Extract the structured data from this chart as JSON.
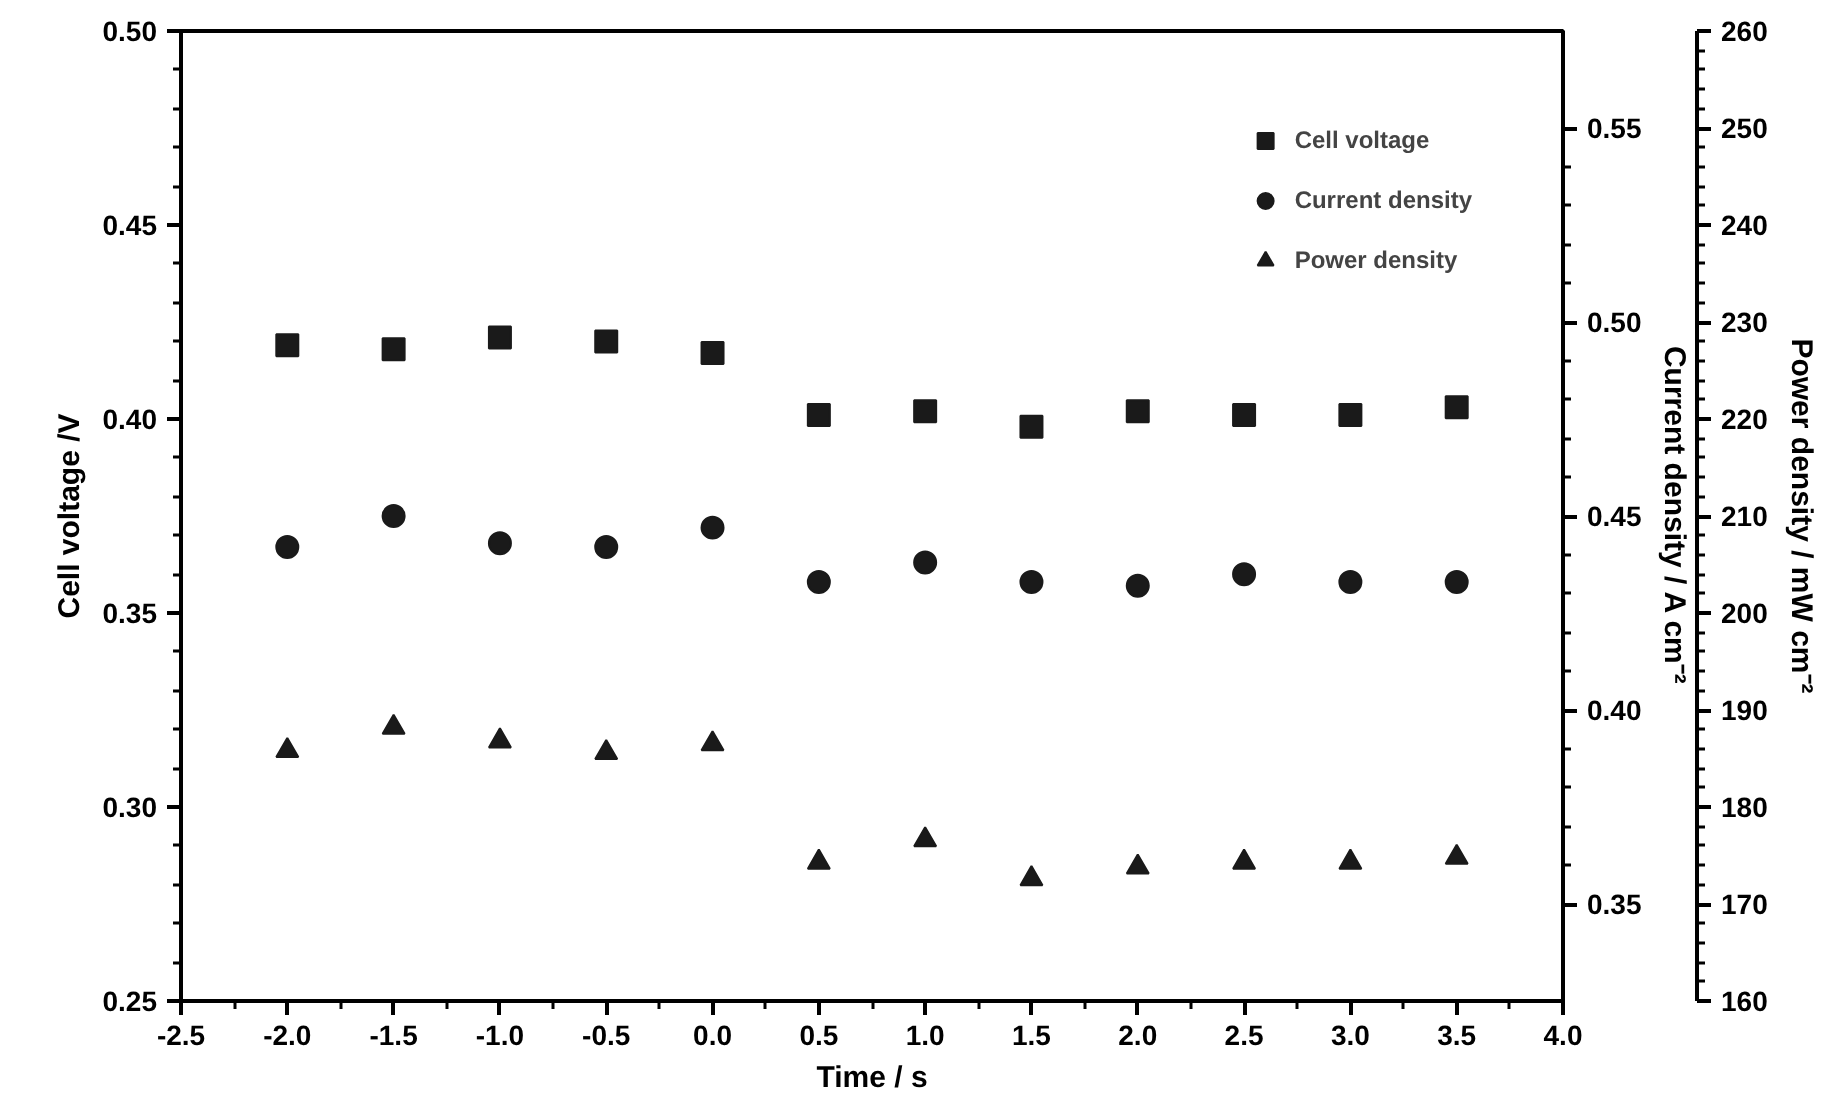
{
  "chart_data": {
    "type": "scatter",
    "xlabel": "Time / s",
    "ylabel": "Cell voltage /V",
    "y2label": "Current density / A cm⁻²",
    "y3label": "Power density / mW cm⁻²",
    "x": [
      -2.0,
      -1.5,
      -1.0,
      -0.5,
      0.0,
      0.5,
      1.0,
      1.5,
      2.0,
      2.5,
      3.0,
      3.5
    ],
    "xlim": [
      -2.5,
      4.0
    ],
    "xticks": [
      {
        "value": -2.5,
        "label": "-2.5"
      },
      {
        "value": -2.0,
        "label": "-2.0"
      },
      {
        "value": -1.5,
        "label": "-1.5"
      },
      {
        "value": -1.0,
        "label": "-1.0"
      },
      {
        "value": -0.5,
        "label": "-0.5"
      },
      {
        "value": 0.0,
        "label": "0.0"
      },
      {
        "value": 0.5,
        "label": "0.5"
      },
      {
        "value": 1.0,
        "label": "1.0"
      },
      {
        "value": 1.5,
        "label": "1.5"
      },
      {
        "value": 2.0,
        "label": "2.0"
      },
      {
        "value": 2.5,
        "label": "2.5"
      },
      {
        "value": 3.0,
        "label": "3.0"
      },
      {
        "value": 3.5,
        "label": "3.5"
      },
      {
        "value": 4.0,
        "label": "4.0"
      }
    ],
    "ylim": [
      0.25,
      0.5
    ],
    "yticks": [
      {
        "value": 0.25,
        "label": "0.25"
      },
      {
        "value": 0.3,
        "label": "0.30"
      },
      {
        "value": 0.35,
        "label": "0.35"
      },
      {
        "value": 0.4,
        "label": "0.40"
      },
      {
        "value": 0.45,
        "label": "0.45"
      },
      {
        "value": 0.5,
        "label": "0.50"
      }
    ],
    "y2lim": [
      0.325,
      0.575
    ],
    "y2ticks": [
      0.35,
      {
        "value": 0.4,
        "label": "0.40"
      },
      0.45,
      {
        "value": 0.5,
        "label": "0.50"
      },
      0.55
    ],
    "y3lim": [
      160,
      260
    ],
    "y3ticks": [
      160,
      170,
      180,
      190,
      200,
      210,
      220,
      230,
      240,
      250,
      260
    ],
    "grid": false,
    "legend": "top right",
    "series": [
      {
        "name": "Cell voltage",
        "color": "#1a1a1a",
        "marker": "square",
        "values": [
          0.419,
          0.418,
          0.421,
          0.42,
          0.417,
          0.401,
          0.402,
          0.398,
          0.402,
          0.401,
          0.401,
          0.403
        ]
      },
      {
        "name": "Current density",
        "color": "#1a1a1a",
        "marker": "circle",
        "axis": "y2",
        "values": [
          0.442,
          0.45,
          0.443,
          0.442,
          0.447,
          0.433,
          0.438,
          0.433,
          0.432,
          0.435,
          0.433,
          0.433
        ]
      },
      {
        "name": "Power density",
        "color": "#1a1a1a",
        "marker": "triangle",
        "axis": "y3",
        "values": [
          185.8,
          188.2,
          186.8,
          185.6,
          186.5,
          174.3,
          176.6,
          172.6,
          173.8,
          174.3,
          174.3,
          174.8
        ]
      }
    ]
  }
}
